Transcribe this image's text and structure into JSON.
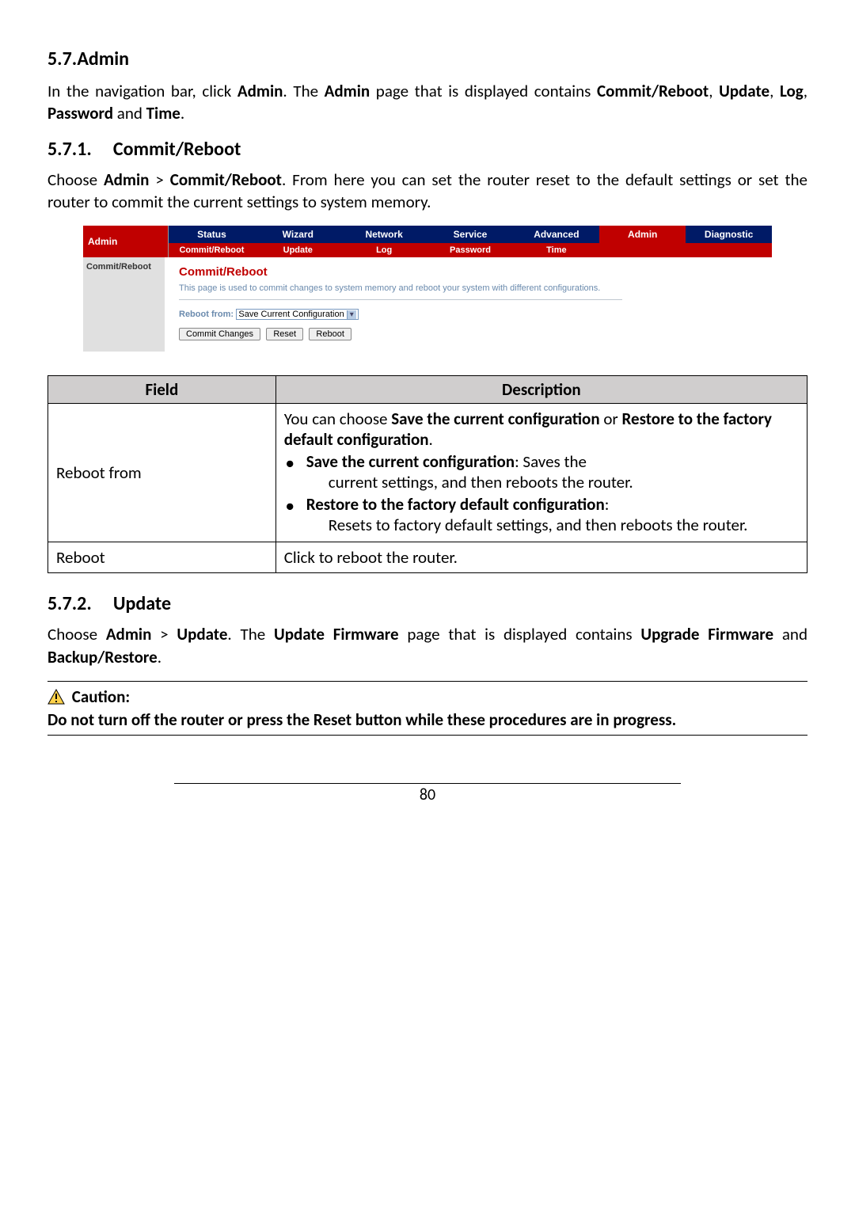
{
  "section57": {
    "num": "5.7.",
    "title": "Admin"
  },
  "intro57": {
    "p1a": "In the navigation bar, click ",
    "p1b": "Admin",
    "p1c": ". The ",
    "p1d": "Admin",
    "p1e": " page that is displayed contains ",
    "p1f": "Commit/Reboot",
    "p1g": ", ",
    "p1h": "Update",
    "p1i": ", ",
    "p1j": "Log",
    "p1k": ", ",
    "p1l": "Password",
    "p1m": " and ",
    "p1n": "Time",
    "p1o": "."
  },
  "section571": {
    "num": "5.7.1.",
    "title": "Commit/Reboot"
  },
  "intro571": {
    "a": "Choose ",
    "b": "Admin",
    "c": " > ",
    "d": "Commit/Reboot",
    "e": ". From here you can set the router reset to the default settings or set the router to commit the current settings to system memory."
  },
  "router": {
    "side": "Admin",
    "topTabs": [
      "Status",
      "Wizard",
      "Network",
      "Service",
      "Advanced",
      "Admin",
      "Diagnostic"
    ],
    "activeTop": 5,
    "subTabs": [
      "Commit/Reboot",
      "Update",
      "Log",
      "Password",
      "Time"
    ],
    "sideSub": "Commit/Reboot",
    "panel": {
      "title": "Commit/Reboot",
      "desc": "This page is used to commit changes to system memory and reboot your system with different configurations.",
      "fieldLabel": "Reboot from:",
      "selectValue": "Save Current Configuration",
      "btnCommit": "Commit Changes",
      "btnReset": "Reset",
      "btnReboot": "Reboot"
    },
    "colors": {
      "navy": "#001a66",
      "red": "#c00000",
      "descBlue": "#6a8aad"
    }
  },
  "table": {
    "hField": "Field",
    "hDesc": "Description",
    "rows": [
      {
        "field": "Reboot from",
        "desc_pre": "You can choose ",
        "desc_b1": "Save the current configuration",
        "desc_mid1": " or ",
        "desc_b2": "Restore to the factory default configuration",
        "desc_post": ".",
        "bullets": [
          {
            "head": "Save the current configuration",
            "tail": ": Saves the",
            "cont": "current settings, and then reboots the router."
          },
          {
            "head": "Restore to the factory default configuration",
            "tail": ":",
            "cont": "Resets to factory default settings, and then reboots the router."
          }
        ]
      },
      {
        "field": "Reboot",
        "plain": "Click to reboot the router."
      }
    ]
  },
  "section572": {
    "num": "5.7.2.",
    "title": "Update"
  },
  "intro572": {
    "a": "Choose ",
    "b": "Admin",
    "c": " > ",
    "d": "Update",
    "e": ". The ",
    "f": "Update Firmware",
    "g": " page that is displayed contains ",
    "h": "Upgrade Firmware",
    "i": " and ",
    "j": "Backup/Restore",
    "k": "."
  },
  "caution": {
    "label": "Caution:",
    "text": "Do not turn off the router or press the Reset button while these procedures are in progress."
  },
  "pageNumber": "80"
}
